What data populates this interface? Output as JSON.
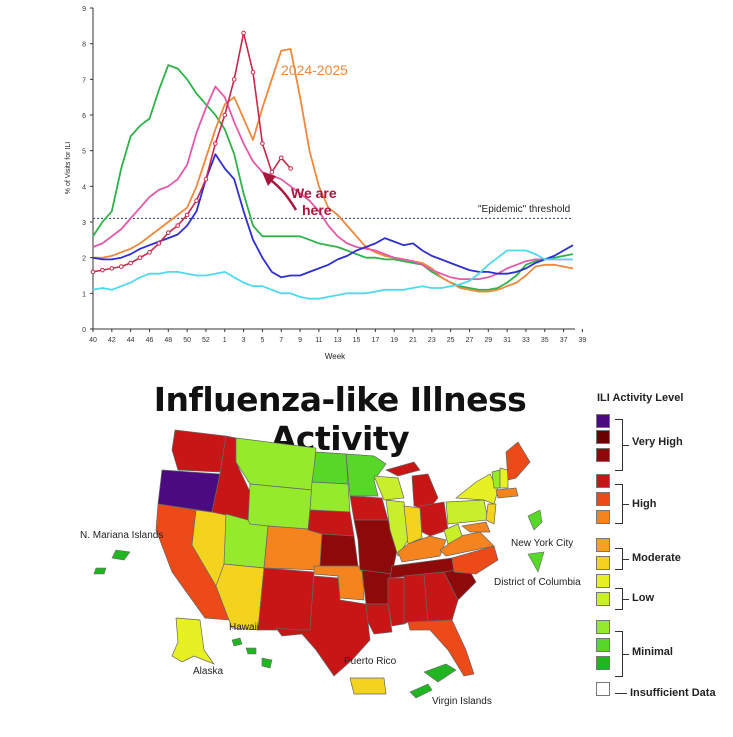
{
  "chart_data": {
    "type": "line",
    "ylabel": "% of Visits for ILI",
    "xlabel": "Week",
    "ylim": [
      0,
      9
    ],
    "yticks": [
      "0",
      "1",
      "2",
      "3",
      "4",
      "5",
      "6",
      "7",
      "8",
      "9"
    ],
    "xticks": [
      "40",
      "42",
      "44",
      "46",
      "48",
      "50",
      "52",
      "1",
      "3",
      "5",
      "7",
      "9",
      "11",
      "13",
      "15",
      "17",
      "19",
      "21",
      "23",
      "25",
      "27",
      "29",
      "31",
      "33",
      "35",
      "37",
      "39"
    ],
    "threshold": {
      "value": 3.1,
      "label": "\"Epidemic\" threshold"
    },
    "annotations": {
      "series_label": "2024-2025",
      "arrow_text_line1": "We are",
      "arrow_text_line2": "here"
    },
    "series": [
      {
        "name": "green",
        "color": "#2fb24a",
        "values": [
          2.6,
          3.0,
          3.3,
          4.5,
          5.4,
          5.7,
          5.9,
          6.7,
          7.4,
          7.3,
          7.0,
          6.6,
          6.3,
          6.0,
          5.6,
          4.9,
          3.8,
          2.9,
          2.6,
          2.6,
          2.6,
          2.6,
          2.6,
          2.5,
          2.4,
          2.35,
          2.3,
          2.2,
          2.1,
          2.0,
          2.0,
          1.95,
          1.95,
          1.9,
          1.85,
          1.8,
          1.6,
          1.45,
          1.3,
          1.2,
          1.15,
          1.1,
          1.1,
          1.15,
          1.3,
          1.5,
          1.8,
          1.9,
          1.95,
          2.0,
          2.05,
          2.1
        ]
      },
      {
        "name": "orange",
        "color": "#f0883c",
        "values": [
          2.0,
          2.0,
          2.05,
          2.15,
          2.25,
          2.4,
          2.6,
          2.8,
          3.0,
          3.2,
          3.4,
          4.0,
          4.8,
          5.6,
          6.3,
          6.5,
          5.9,
          5.3,
          6.2,
          7.0,
          7.8,
          7.85,
          6.5,
          5.0,
          4.0,
          3.4,
          3.2,
          2.9,
          2.6,
          2.3,
          2.15,
          2.05,
          2.0,
          1.95,
          1.9,
          1.85,
          1.7,
          1.45,
          1.3,
          1.15,
          1.1,
          1.05,
          1.05,
          1.1,
          1.2,
          1.3,
          1.5,
          1.75,
          1.8,
          1.8,
          1.75,
          1.7
        ]
      },
      {
        "name": "pink",
        "color": "#e25aa8",
        "values": [
          2.3,
          2.4,
          2.6,
          2.8,
          3.1,
          3.4,
          3.7,
          3.9,
          4.0,
          4.2,
          4.6,
          5.5,
          6.2,
          6.8,
          6.5,
          5.8,
          5.2,
          4.7,
          4.4,
          4.3,
          4.2,
          4.0,
          3.8,
          3.6,
          3.3,
          2.9,
          2.6,
          2.4,
          2.3,
          2.25,
          2.2,
          2.1,
          2.0,
          1.95,
          1.9,
          1.8,
          1.65,
          1.55,
          1.45,
          1.4,
          1.4,
          1.4,
          1.45,
          1.55,
          1.7,
          1.8,
          1.9,
          1.95,
          1.95,
          1.95,
          1.95,
          1.95
        ]
      },
      {
        "name": "blue",
        "color": "#2f2fd0",
        "values": [
          2.0,
          1.95,
          1.95,
          2.0,
          2.1,
          2.25,
          2.35,
          2.45,
          2.55,
          2.65,
          2.9,
          3.3,
          4.2,
          4.9,
          4.5,
          4.2,
          3.3,
          2.5,
          2.0,
          1.6,
          1.45,
          1.5,
          1.5,
          1.6,
          1.7,
          1.8,
          1.95,
          2.05,
          2.2,
          2.3,
          2.4,
          2.55,
          2.45,
          2.35,
          2.4,
          2.2,
          2.05,
          1.95,
          1.85,
          1.75,
          1.65,
          1.6,
          1.6,
          1.55,
          1.55,
          1.6,
          1.7,
          1.85,
          1.95,
          2.05,
          2.2,
          2.35
        ]
      },
      {
        "name": "cyan",
        "color": "#4fd8f0",
        "values": [
          1.1,
          1.15,
          1.1,
          1.2,
          1.3,
          1.45,
          1.55,
          1.55,
          1.6,
          1.6,
          1.55,
          1.5,
          1.5,
          1.55,
          1.6,
          1.45,
          1.3,
          1.2,
          1.2,
          1.1,
          1.0,
          1.0,
          0.9,
          0.85,
          0.85,
          0.9,
          0.95,
          1.0,
          1.0,
          1.0,
          1.05,
          1.1,
          1.1,
          1.1,
          1.15,
          1.2,
          1.15,
          1.15,
          1.2,
          1.25,
          1.35,
          1.55,
          1.8,
          2.0,
          2.2,
          2.2,
          2.2,
          2.1,
          1.95,
          1.95,
          1.95,
          1.95
        ]
      },
      {
        "name": "2024-2025",
        "color": "#c9284a",
        "markers": true,
        "values": [
          1.6,
          1.65,
          1.7,
          1.75,
          1.85,
          2.0,
          2.15,
          2.4,
          2.7,
          2.9,
          3.2,
          3.6,
          4.2,
          5.2,
          6.0,
          7.0,
          8.3,
          7.2,
          5.2,
          4.4,
          4.8,
          4.5
        ]
      }
    ]
  },
  "map": {
    "title": "Influenza-like Illness Activity",
    "labels": {
      "n_mariana": "N. Mariana Islands",
      "hawaii": "Hawaii",
      "alaska": "Alaska",
      "puerto_rico": "Puerto Rico",
      "virgin_islands": "Virgin Islands",
      "new_york_city": "New York City",
      "dc": "District of Columbia"
    },
    "legend": {
      "title": "ILI Activity Level",
      "swatches": [
        "#4b0a80",
        "#6a0000",
        "#8e0a0a",
        "#c81515",
        "#ec4a18",
        "#f5831e",
        "#f7a21f",
        "#f4d31f",
        "#e6f023",
        "#c9ee2a",
        "#95ea2b",
        "#57d828",
        "#22b522",
        "#ffffff"
      ],
      "groups": [
        "Very High",
        "High",
        "Moderate",
        "Low",
        "Minimal"
      ],
      "insufficient": "Insufficient Data"
    }
  }
}
